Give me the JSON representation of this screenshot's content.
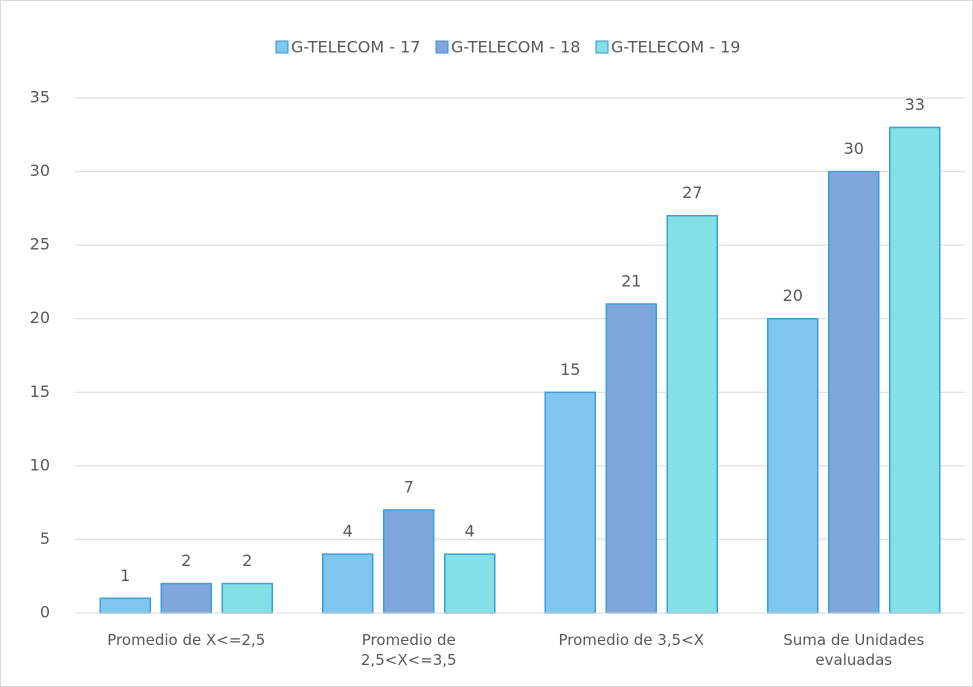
{
  "chart_data": {
    "type": "bar",
    "categories": [
      "Promedio de X<=2,5",
      "Promedio de 2,5<X<=3,5",
      "Promedio de 3,5<X",
      "Suma de Unidades evaluadas"
    ],
    "series": [
      {
        "name": "G-TELECOM - 17",
        "color": "#7fc6f0",
        "values": [
          1,
          4,
          15,
          20
        ]
      },
      {
        "name": "G-TELECOM - 18",
        "color": "#7fa6dd",
        "values": [
          2,
          7,
          21,
          30
        ]
      },
      {
        "name": "G-TELECOM - 19",
        "color": "#82e0e6",
        "values": [
          2,
          4,
          27,
          33
        ]
      }
    ],
    "ylim": [
      0,
      35
    ],
    "yticks": [
      0,
      5,
      10,
      15,
      20,
      25,
      30,
      35
    ],
    "grid": true,
    "legend": "top"
  }
}
